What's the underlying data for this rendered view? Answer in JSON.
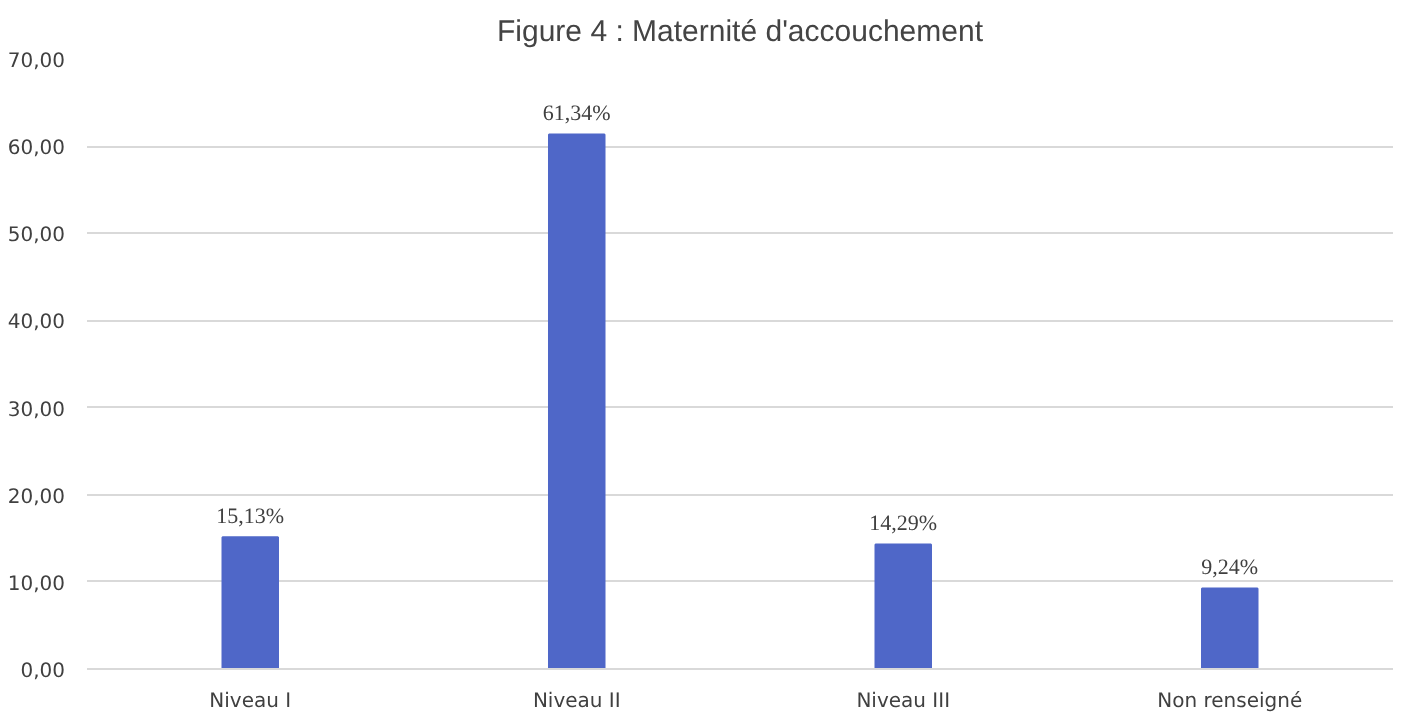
{
  "chart_data": {
    "type": "bar",
    "title": "Figure 4 : Maternité d'accouchement",
    "categories": [
      "Niveau I",
      "Niveau II",
      "Niveau III",
      "Non renseigné"
    ],
    "values": [
      15.13,
      61.34,
      14.29,
      9.24
    ],
    "value_labels": [
      "15,13%",
      "61,34%",
      "14,29%",
      "9,24%"
    ],
    "color": "#4f67c8",
    "ylim": [
      0,
      70
    ],
    "yticks": [
      {
        "value": 0,
        "label": "0,00"
      },
      {
        "value": 10,
        "label": "10,00"
      },
      {
        "value": 20,
        "label": "20,00"
      },
      {
        "value": 30,
        "label": "30,00"
      },
      {
        "value": 40,
        "label": "40,00"
      },
      {
        "value": 50,
        "label": "50,00"
      },
      {
        "value": 60,
        "label": "60,00"
      },
      {
        "value": 70,
        "label": "70,00"
      }
    ],
    "grid": "y"
  }
}
